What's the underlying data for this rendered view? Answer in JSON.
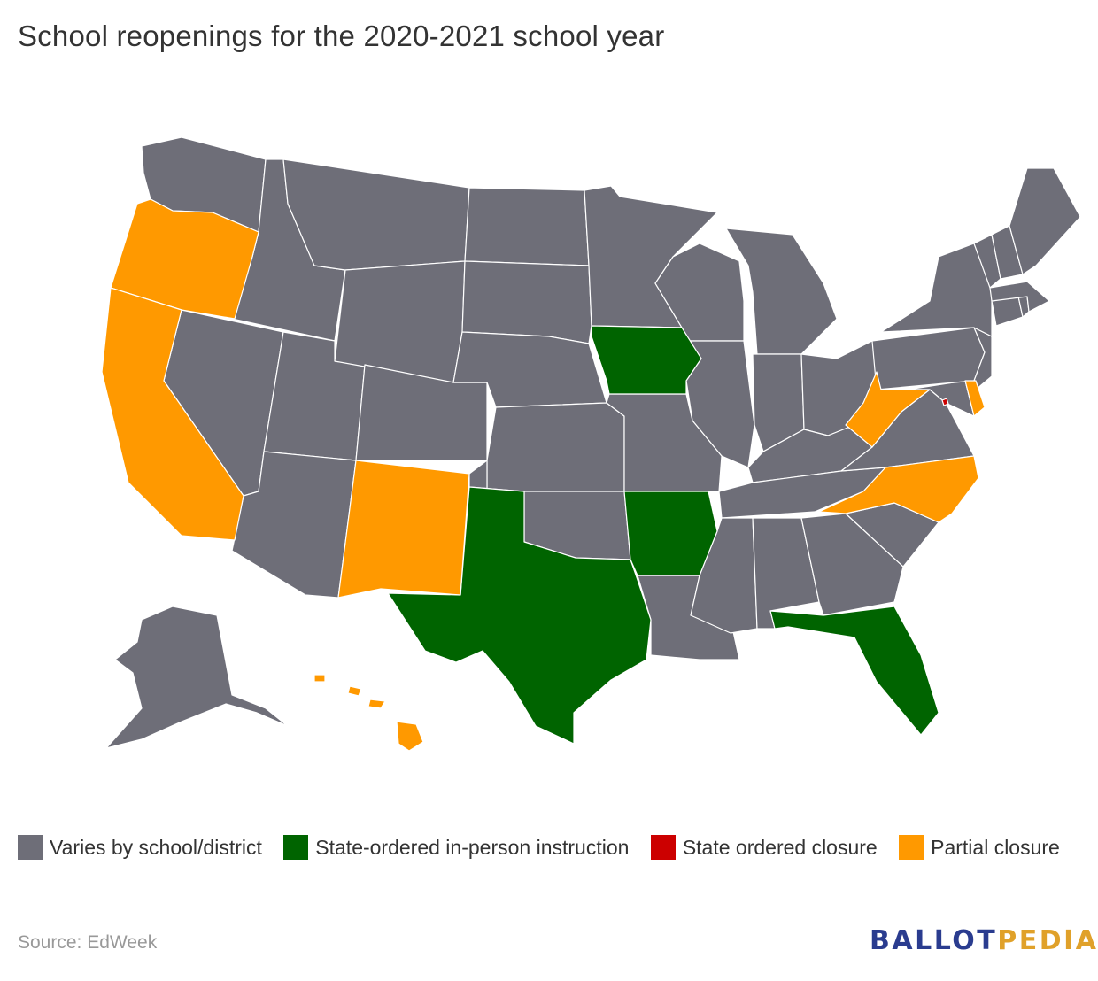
{
  "title": "School reopenings for the 2020-2021 school year",
  "colors": {
    "varies": "#6e6e78",
    "in_person": "#006400",
    "closure": "#cc0000",
    "partial": "#ff9900",
    "logo_ballot": "#2a3c8f",
    "logo_pedia": "#e0a12a"
  },
  "legend": [
    {
      "label": "Varies by school/district",
      "color": "#6e6e78"
    },
    {
      "label": "State-ordered in-person instruction",
      "color": "#006400"
    },
    {
      "label": "State ordered closure",
      "color": "#cc0000"
    },
    {
      "label": "Partial closure",
      "color": "#ff9900"
    }
  ],
  "map_data": {
    "Varies by school/district": [
      "Washington",
      "Idaho",
      "Montana",
      "Nevada",
      "Utah",
      "Wyoming",
      "Colorado",
      "Arizona",
      "North Dakota",
      "South Dakota",
      "Nebraska",
      "Kansas",
      "Oklahoma",
      "Minnesota",
      "Missouri",
      "Louisiana",
      "Wisconsin",
      "Illinois",
      "Michigan",
      "Indiana",
      "Ohio",
      "Kentucky",
      "Tennessee",
      "Mississippi",
      "Alabama",
      "Georgia",
      "South Carolina",
      "Virginia",
      "Maryland",
      "Pennsylvania",
      "New Jersey",
      "New York",
      "Connecticut",
      "Rhode Island",
      "Massachusetts",
      "Vermont",
      "New Hampshire",
      "Maine",
      "Alaska"
    ],
    "State-ordered in-person instruction": [
      "Texas",
      "Iowa",
      "Arkansas",
      "Florida"
    ],
    "State ordered closure": [
      "District of Columbia"
    ],
    "Partial closure": [
      "Oregon",
      "California",
      "New Mexico",
      "West Virginia",
      "North Carolina",
      "Delaware",
      "Hawaii"
    ]
  },
  "source": "Source: EdWeek",
  "logo": {
    "part1": "BALLOT",
    "part2": "PEDIA"
  }
}
